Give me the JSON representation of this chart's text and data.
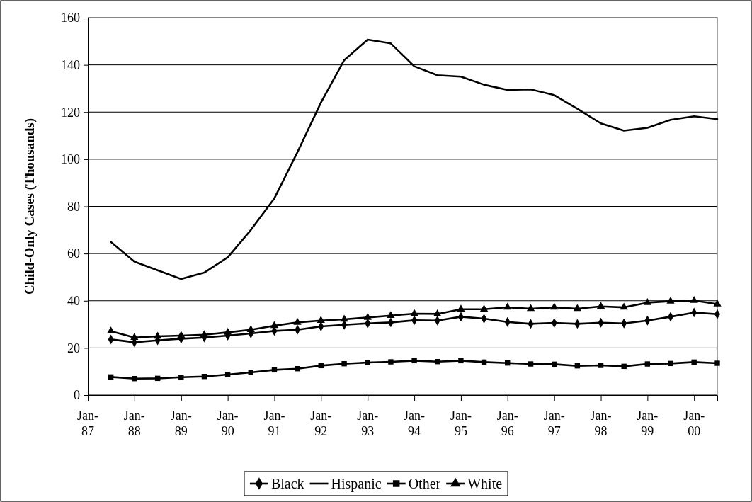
{
  "chart_data": {
    "type": "line",
    "ylabel": "Child-Only Cases (Thousands)",
    "x": [
      "1987-07",
      "1988-01",
      "1988-07",
      "1989-01",
      "1989-07",
      "1990-01",
      "1990-07",
      "1991-01",
      "1991-07",
      "1992-01",
      "1992-07",
      "1993-01",
      "1993-07",
      "1994-01",
      "1994-07",
      "1995-01",
      "1995-07",
      "1996-01",
      "1996-07",
      "1997-01",
      "1997-07",
      "1998-01",
      "1998-07",
      "1999-01",
      "1999-07",
      "2000-01",
      "2000-07"
    ],
    "series": [
      {
        "name": "Black",
        "color": "#000000",
        "marker": "diamond",
        "values": [
          23.6,
          22.4,
          23.2,
          23.9,
          24.4,
          25.2,
          26.1,
          27.2,
          27.7,
          29.1,
          29.8,
          30.4,
          30.8,
          31.7,
          31.6,
          33.2,
          32.4,
          31.0,
          30.2,
          30.6,
          30.2,
          30.7,
          30.4,
          31.6,
          33.2,
          35.0,
          34.3
        ]
      },
      {
        "name": "Hispanic",
        "color": "#000000",
        "marker": "none",
        "values": [
          64.9,
          56.6,
          52.9,
          49.2,
          51.9,
          58.4,
          70,
          83.4,
          103,
          124,
          142,
          150.7,
          149.1,
          139.4,
          135.6,
          135.0,
          131.6,
          129.4,
          129.6,
          127.2,
          121.4,
          115.2,
          112.1,
          113.3,
          116.7,
          118.2,
          117.0
        ]
      },
      {
        "name": "Other",
        "color": "#000000",
        "marker": "square",
        "values": [
          7.7,
          7.0,
          7.1,
          7.6,
          7.9,
          8.7,
          9.6,
          10.7,
          11.2,
          12.5,
          13.3,
          13.8,
          14.1,
          14.6,
          14.2,
          14.6,
          14.0,
          13.6,
          13.2,
          13.1,
          12.4,
          12.6,
          12.2,
          13.2,
          13.4,
          14.0,
          13.5
        ]
      },
      {
        "name": "White",
        "color": "#000000",
        "marker": "triangle",
        "values": [
          27.1,
          24.4,
          24.9,
          25.2,
          25.6,
          26.6,
          27.7,
          29.4,
          30.8,
          31.6,
          32.1,
          32.9,
          33.7,
          34.5,
          34.4,
          36.4,
          36.4,
          37.2,
          36.6,
          37.2,
          36.6,
          37.6,
          37.2,
          39.2,
          39.8,
          40.1,
          38.6
        ]
      }
    ],
    "xlim": [
      "1987-01",
      "2000-07"
    ],
    "xticks": [
      {
        "value": "1987-01",
        "label": "Jan-87"
      },
      {
        "value": "1988-01",
        "label": "Jan-88"
      },
      {
        "value": "1989-01",
        "label": "Jan-89"
      },
      {
        "value": "1990-01",
        "label": "Jan-90"
      },
      {
        "value": "1991-01",
        "label": "Jan-91"
      },
      {
        "value": "1992-01",
        "label": "Jan-92"
      },
      {
        "value": "1993-01",
        "label": "Jan-93"
      },
      {
        "value": "1994-01",
        "label": "Jan-94"
      },
      {
        "value": "1995-01",
        "label": "Jan-95"
      },
      {
        "value": "1996-01",
        "label": "Jan-96"
      },
      {
        "value": "1997-01",
        "label": "Jan-97"
      },
      {
        "value": "1998-01",
        "label": "Jan-98"
      },
      {
        "value": "1999-01",
        "label": "Jan-99"
      },
      {
        "value": "2000-01",
        "label": "Jan-00"
      }
    ],
    "ylim": [
      0,
      160
    ],
    "yticks": [
      0,
      20,
      40,
      60,
      80,
      100,
      120,
      140,
      160
    ],
    "grid": "y",
    "legend": "bottom",
    "line_style": "solid"
  }
}
